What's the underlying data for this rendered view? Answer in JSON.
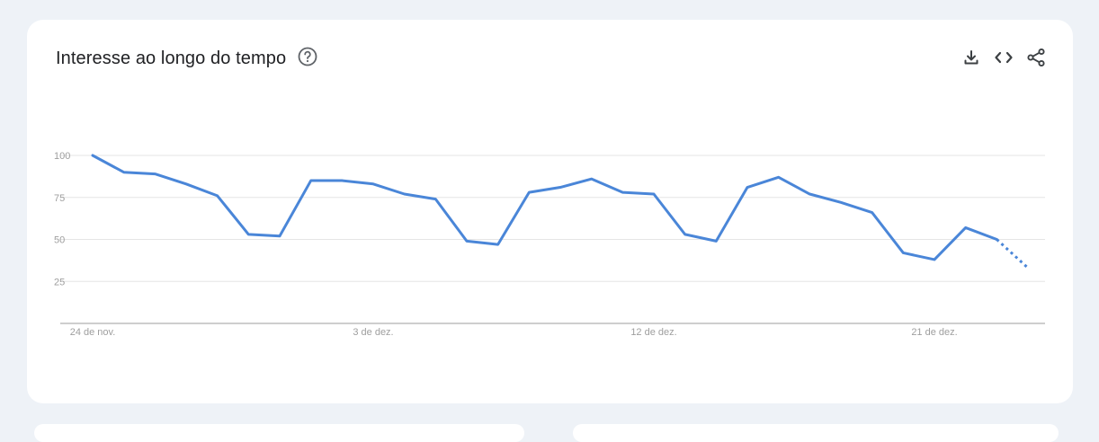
{
  "card": {
    "title": "Interesse ao longo do tempo"
  },
  "icons": {
    "help": "help-circle-icon",
    "download": "download-icon",
    "embed": "code-embed-icon",
    "share": "share-icon"
  },
  "colors": {
    "line": "#4a86d8",
    "grid": "#e5e5e5",
    "axis": "#9e9e9e",
    "tick_text": "#9e9e9e",
    "background": "#eef2f7",
    "card": "#ffffff"
  },
  "chart_data": {
    "type": "line",
    "title": "Interesse ao longo do tempo",
    "xlabel": "",
    "ylabel": "",
    "ylim": [
      0,
      100
    ],
    "yticks": [
      25,
      50,
      75,
      100
    ],
    "x_tick_labels": [
      {
        "index": 0,
        "label": "24 de nov."
      },
      {
        "index": 9,
        "label": "3 de dez."
      },
      {
        "index": 18,
        "label": "12 de dez."
      },
      {
        "index": 27,
        "label": "21 de dez."
      }
    ],
    "grid": true,
    "series": [
      {
        "values": [
          100,
          90,
          89,
          83,
          76,
          53,
          52,
          85,
          85,
          83,
          77,
          74,
          49,
          47,
          78,
          81,
          86,
          78,
          77,
          53,
          49,
          81,
          87,
          77,
          72,
          66,
          42,
          38,
          57,
          50,
          33
        ],
        "partial_from_index": 29
      }
    ]
  }
}
